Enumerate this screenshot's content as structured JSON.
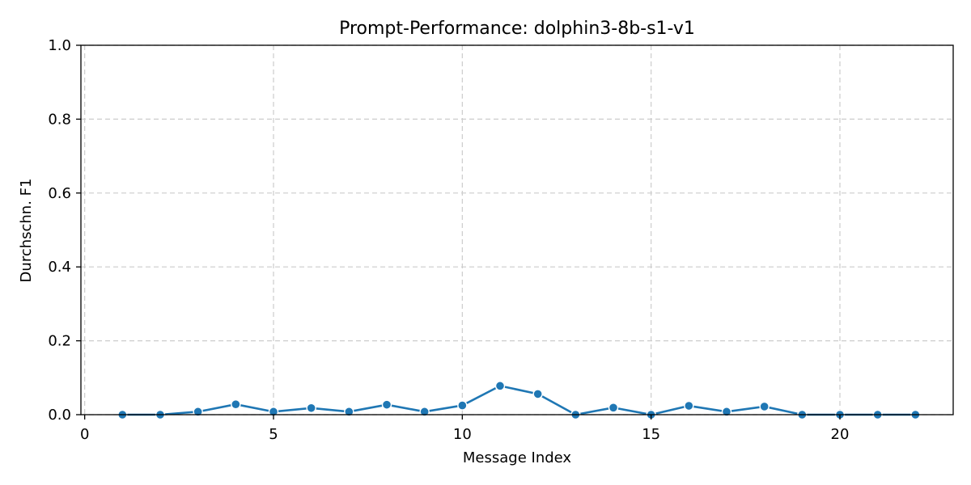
{
  "chart_data": {
    "type": "line",
    "title": "Prompt-Performance: dolphin3-8b-s1-v1",
    "xlabel": "Message Index",
    "ylabel": "Durchschn. F1",
    "xlim": [
      -0.1,
      23
    ],
    "ylim": [
      0,
      1.0
    ],
    "xticks": [
      0,
      5,
      10,
      15,
      20
    ],
    "yticks": [
      0.0,
      0.2,
      0.4,
      0.6,
      0.8,
      1.0
    ],
    "xtick_labels": [
      "0",
      "5",
      "10",
      "15",
      "20"
    ],
    "ytick_labels": [
      "0.0",
      "0.2",
      "0.4",
      "0.6",
      "0.8",
      "1.0"
    ],
    "grid": true,
    "series": [
      {
        "color": "#1f77b4",
        "x": [
          1,
          2,
          3,
          4,
          5,
          6,
          7,
          8,
          9,
          10,
          11,
          12,
          13,
          14,
          15,
          16,
          17,
          18,
          19,
          20,
          21,
          22
        ],
        "y": [
          0.0,
          0.0,
          0.008,
          0.028,
          0.008,
          0.018,
          0.008,
          0.027,
          0.008,
          0.025,
          0.078,
          0.056,
          0.0,
          0.019,
          0.0,
          0.024,
          0.008,
          0.022,
          0.0,
          0.0,
          0.0,
          0.0
        ]
      }
    ]
  }
}
